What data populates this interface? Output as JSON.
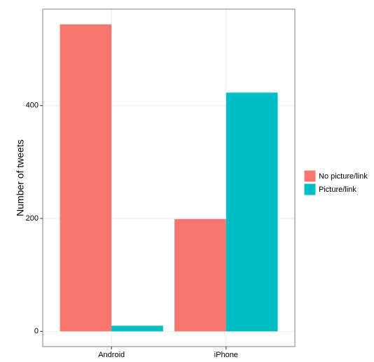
{
  "chart_data": {
    "type": "bar",
    "y_label": "Number of tweets",
    "categories": [
      "Android",
      "iPhone"
    ],
    "series": [
      {
        "name": "No picture/link",
        "color": "#F8766D",
        "values": [
          544,
          199
        ]
      },
      {
        "name": "Picture/link",
        "color": "#00BFC4",
        "values": [
          10,
          423
        ]
      }
    ],
    "ylim": [
      -27,
      571
    ],
    "yticks": [
      0,
      200,
      400
    ],
    "grid": true,
    "legend": "right"
  }
}
